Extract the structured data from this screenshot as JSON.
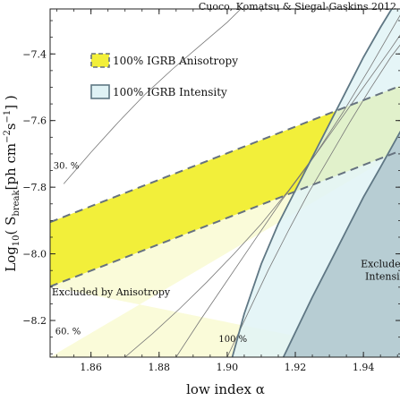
{
  "chart_data": {
    "type": "area",
    "title": "",
    "credit": "Cuoco, Komatsu & Siegal-Gaskins 2012",
    "xlabel": "low index α",
    "ylabel_main": "Log",
    "ylabel_main_sub": "10",
    "ylabel_paren_open": "( S",
    "ylabel_s_sub": "break",
    "ylabel_units": "[ph cm",
    "ylabel_units_sup1": "−2",
    "ylabel_units_mid": "s",
    "ylabel_units_sup2": "−1",
    "ylabel_close": "] )",
    "xlim": [
      1.848,
      1.951
    ],
    "ylim": [
      -8.31,
      -7.265
    ],
    "xticks": [
      1.86,
      1.88,
      1.9,
      1.92,
      1.94
    ],
    "xtick_labels": [
      "1.86",
      "1.88",
      "1.90",
      "1.92",
      "1.94"
    ],
    "yticks": [
      -8.2,
      -8.0,
      -7.8,
      -7.6,
      -7.4
    ],
    "ytick_labels": [
      "−8.2",
      "−8.0",
      "−7.8",
      "−7.6",
      "−7.4"
    ],
    "grid": false,
    "legend_position": "top-left",
    "legend": [
      {
        "label": "100% IGRB Anisotropy",
        "fill": "#f2ef3a",
        "edge": "#66727f",
        "dashed": true
      },
      {
        "label": "100% IGRB Intensity",
        "fill": "#dff2f5",
        "edge": "#5f7784",
        "dashed": false
      }
    ],
    "colors": {
      "band_yellow": "#f2ef3a",
      "excl_anisotropy": "#fafbd9",
      "band_dash": "#66727f",
      "excl_intensity": "#e1f3f6",
      "excl_intensity_edge": "#5f7784",
      "overlap_green": "#e1f1cb",
      "bottom_right": "#b7cdd3",
      "thin_contour": "#777777"
    },
    "anisotropy_band": {
      "name": "100% IGRB Anisotropy",
      "upper": {
        "x": [
          1.848,
          1.951
        ],
        "y": [
          -7.905,
          -7.495
        ]
      },
      "lower": {
        "x": [
          1.848,
          1.951
        ],
        "y": [
          -8.098,
          -7.69
        ]
      }
    },
    "intensity_boundary": {
      "name": "100% IGRB Intensity",
      "x": [
        1.9015,
        1.905,
        1.91,
        1.915,
        1.92,
        1.925,
        1.93,
        1.935,
        1.94,
        1.945,
        1.951
      ],
      "y": [
        -8.31,
        -8.18,
        -8.03,
        -7.91,
        -7.81,
        -7.71,
        -7.61,
        -7.51,
        -7.41,
        -7.32,
        -7.22
      ]
    },
    "bottom_right_boundary": {
      "x": [
        1.9165,
        1.925,
        1.93,
        1.935,
        1.94,
        1.945,
        1.951
      ],
      "y": [
        -8.31,
        -8.13,
        -8.03,
        -7.93,
        -7.83,
        -7.74,
        -7.63
      ]
    },
    "contours": [
      {
        "label": "30. %",
        "label_x": 1.849,
        "label_y": -7.745,
        "x": [
          1.852,
          1.86,
          1.868,
          1.876,
          1.884,
          1.892,
          1.9,
          1.904
        ],
        "y": [
          -7.79,
          -7.695,
          -7.605,
          -7.52,
          -7.445,
          -7.375,
          -7.305,
          -7.265
        ]
      },
      {
        "label": "",
        "x": [
          1.87,
          1.878,
          1.886,
          1.894,
          1.902,
          1.91,
          1.918,
          1.926,
          1.934,
          1.942,
          1.951
        ],
        "y": [
          -8.31,
          -8.24,
          -8.165,
          -8.085,
          -8.0,
          -7.91,
          -7.81,
          -7.7,
          -7.575,
          -7.44,
          -7.28
        ]
      },
      {
        "label": "60. %",
        "label_x": 1.8495,
        "label_y": -8.242,
        "x": [
          1.885,
          1.892,
          1.9,
          1.908,
          1.916,
          1.924,
          1.932,
          1.94,
          1.948,
          1.951
        ],
        "y": [
          -8.31,
          -8.2,
          -8.08,
          -7.96,
          -7.84,
          -7.73,
          -7.615,
          -7.5,
          -7.385,
          -7.34
        ]
      },
      {
        "label": "100 %",
        "label_x": 1.8975,
        "label_y": -8.265,
        "x": [
          1.9,
          1.906,
          1.912,
          1.918,
          1.924,
          1.93,
          1.936,
          1.942,
          1.948,
          1.951
        ],
        "y": [
          -8.31,
          -8.18,
          -8.05,
          -7.93,
          -7.815,
          -7.71,
          -7.605,
          -7.505,
          -7.41,
          -7.37
        ]
      }
    ],
    "annotations": [
      {
        "text": "Excluded by Anisotropy",
        "x": 1.8485,
        "y": -8.125
      },
      {
        "text": "Excluded by",
        "x": 1.9392,
        "y": -8.04
      },
      {
        "text": "Intensity",
        "x": 1.9405,
        "y": -8.077
      }
    ]
  }
}
